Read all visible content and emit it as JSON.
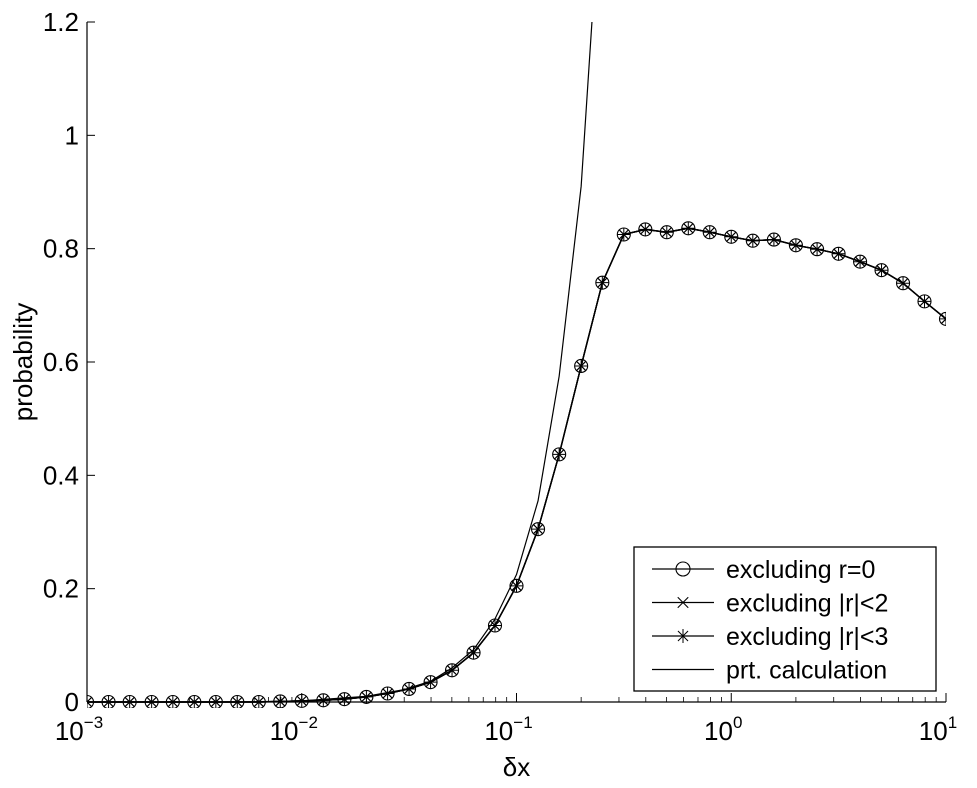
{
  "chart_data": {
    "type": "line",
    "xscale": "log",
    "xlabel": "δx",
    "ylabel": "probability",
    "xlim": [
      0.001,
      10
    ],
    "ylim": [
      0,
      1.2
    ],
    "x_ticks": [
      {
        "base": "10",
        "exp": "−3"
      },
      {
        "base": "10",
        "exp": "−2"
      },
      {
        "base": "10",
        "exp": "−1"
      },
      {
        "base": "10",
        "exp": "0"
      },
      {
        "base": "10",
        "exp": "1"
      }
    ],
    "y_ticks": [
      "0",
      "0.2",
      "0.4",
      "0.6",
      "0.8",
      "1",
      "1.2"
    ],
    "grid": false,
    "legend_position": "bottom-right",
    "x": [
      0.001,
      0.00126,
      0.00158,
      0.002,
      0.00251,
      0.00316,
      0.00398,
      0.00501,
      0.00631,
      0.00794,
      0.01,
      0.0126,
      0.0158,
      0.02,
      0.0251,
      0.0316,
      0.0398,
      0.0501,
      0.0631,
      0.0794,
      0.1,
      0.126,
      0.158,
      0.2,
      0.251,
      0.316,
      0.398,
      0.501,
      0.631,
      0.794,
      1,
      1.26,
      1.58,
      2,
      2.51,
      3.16,
      3.98,
      5.01,
      6.31,
      7.94,
      10
    ],
    "series": [
      {
        "name": "excluding r=0",
        "marker": "circle",
        "values": [
          0,
          0,
          0,
          0,
          0,
          0,
          0,
          0,
          0,
          0.001,
          0.002,
          0.003,
          0.005,
          0.009,
          0.015,
          0.023,
          0.035,
          0.056,
          0.087,
          0.135,
          0.205,
          0.305,
          0.437,
          0.593,
          0.74,
          0.825,
          0.834,
          0.829,
          0.836,
          0.829,
          0.821,
          0.814,
          0.816,
          0.806,
          0.799,
          0.791,
          0.777,
          0.762,
          0.739,
          0.707,
          0.676
        ]
      },
      {
        "name": "excluding |r|<2",
        "marker": "x",
        "values": [
          0,
          0,
          0,
          0,
          0,
          0,
          0,
          0,
          0,
          0.001,
          0.002,
          0.003,
          0.005,
          0.009,
          0.015,
          0.023,
          0.035,
          0.056,
          0.087,
          0.135,
          0.205,
          0.305,
          0.437,
          0.593,
          0.74,
          0.825,
          0.834,
          0.829,
          0.836,
          0.829,
          0.821,
          0.814,
          0.816,
          0.806,
          0.799,
          0.791,
          0.777,
          0.762,
          0.739,
          0.707,
          0.676
        ]
      },
      {
        "name": "excluding |r|<3",
        "marker": "star",
        "values": [
          0,
          0,
          0,
          0,
          0,
          0,
          0,
          0,
          0,
          0.001,
          0.002,
          0.003,
          0.005,
          0.009,
          0.015,
          0.023,
          0.035,
          0.056,
          0.087,
          0.135,
          0.205,
          0.305,
          0.437,
          0.593,
          0.74,
          0.825,
          0.834,
          0.829,
          0.836,
          0.829,
          0.821,
          0.814,
          0.816,
          0.806,
          0.799,
          0.791,
          0.777,
          0.762,
          0.739,
          0.707,
          0.676
        ]
      },
      {
        "name": "prt. calculation",
        "marker": "none",
        "x": [
          0.001,
          0.002,
          0.005,
          0.01,
          0.02,
          0.03,
          0.04,
          0.05,
          0.063,
          0.079,
          0.1,
          0.126,
          0.158,
          0.2,
          0.225
        ],
        "values": [
          0,
          0,
          0,
          0.002,
          0.01,
          0.022,
          0.037,
          0.06,
          0.092,
          0.145,
          0.225,
          0.355,
          0.575,
          0.91,
          1.205
        ]
      }
    ]
  },
  "colors": {
    "line": "#000000",
    "background": "#ffffff"
  }
}
